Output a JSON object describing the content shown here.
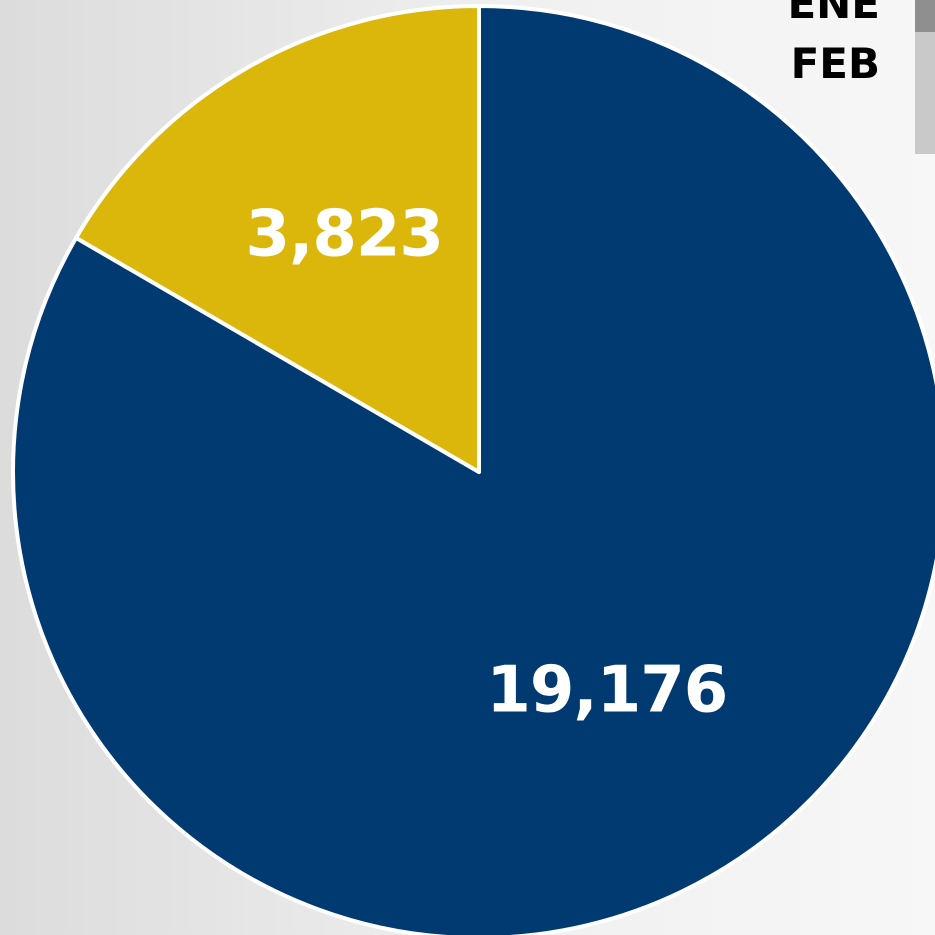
{
  "colors": {
    "background": "#ebebeb",
    "slice_border": "#ffffff"
  },
  "chart_data": {
    "type": "pie",
    "slices": [
      {
        "label": "ENE",
        "value": 19176,
        "display": "19,176",
        "color": "#003a70"
      },
      {
        "label": "FEB",
        "value": 3823,
        "display": "3,823",
        "color": "#dbb70c"
      }
    ],
    "start_angle_deg": 0,
    "direction": "clockwise",
    "legend_position": "top-right",
    "title": ""
  }
}
